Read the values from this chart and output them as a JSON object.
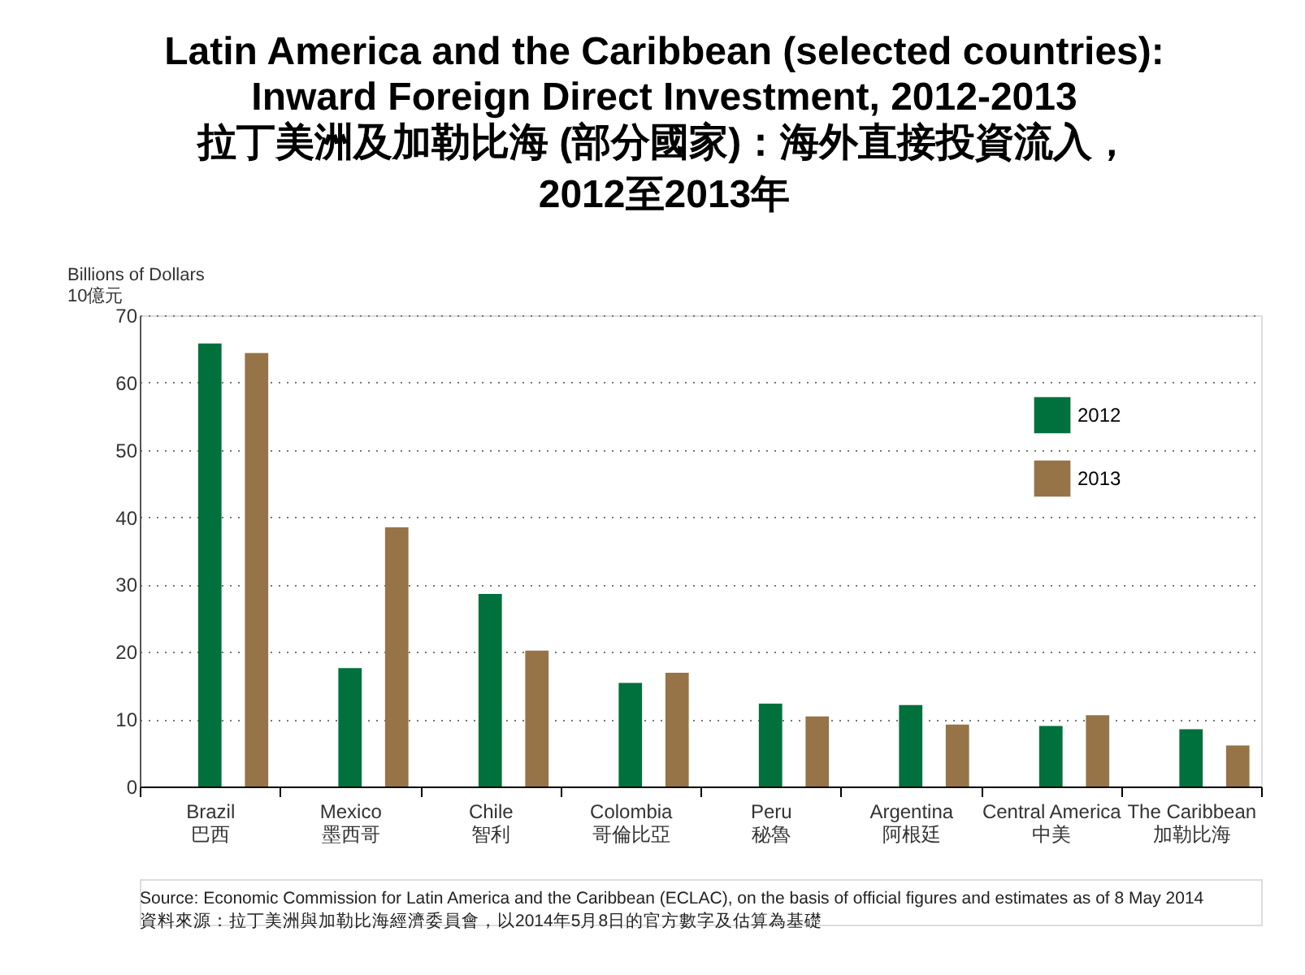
{
  "chart_data": {
    "type": "bar",
    "title": "Latin America and the Caribbean (selected countries):\nInward Foreign Direct Investment, 2012-2013",
    "subtitle": "拉丁美洲及加勒比海 (部分國家)：海外直接投資流入，2012至2013年",
    "ylabel": "Billions of Dollars\n10億元",
    "categories": [
      "Brazil\n巴西",
      "Mexico\n墨西哥",
      "Chile\n智利",
      "Colombia\n哥倫比亞",
      "Peru\n秘魯",
      "Argentina\n阿根廷",
      "Central America\n中美",
      "The Caribbean\n加勒比海"
    ],
    "series": [
      {
        "name": "2012",
        "color": "#00703c",
        "values": [
          65.8,
          17.6,
          28.6,
          15.4,
          12.3,
          12.1,
          9.0,
          8.5
        ]
      },
      {
        "name": "2013",
        "color": "#967447",
        "values": [
          64.4,
          38.5,
          20.2,
          16.9,
          10.4,
          9.2,
          10.6,
          6.1
        ]
      }
    ],
    "ylim": [
      0,
      70
    ],
    "yticks": [
      0,
      10,
      20,
      30,
      40,
      50,
      60,
      70
    ],
    "grid": "y",
    "legend": "top right",
    "annotations": [
      "Source: Economic Commission for Latin America and the Caribbean (ECLAC), on the basis of official figures and estimates as of 8 May 2014",
      "資料來源：拉丁美洲與加勒比海經濟委員會，以2014年5月8日的官方數字及估算為基礎"
    ]
  }
}
